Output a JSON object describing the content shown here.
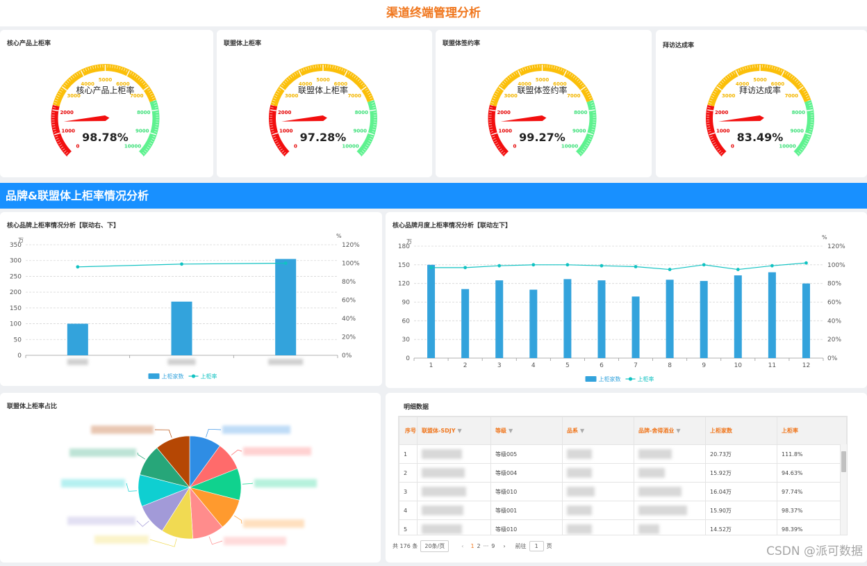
{
  "page_title": "渠道终端管理分析",
  "section_banner": "品牌&联盟体上柜率情况分析",
  "gauge_ticks": [
    "0",
    "1000",
    "2000",
    "3000",
    "4000",
    "5000",
    "6000",
    "7000",
    "8000",
    "9000",
    "10000"
  ],
  "gauges": [
    {
      "card_title": "核心产品上柜率",
      "center_label": "核心产品上柜率",
      "value_text": "98.78%",
      "needle_value": 1500
    },
    {
      "card_title": "联盟体上柜率",
      "center_label": "联盟体上柜率",
      "value_text": "97.28%",
      "needle_value": 1500
    },
    {
      "card_title": "联盟体签约率",
      "center_label": "联盟体签约率",
      "value_text": "99.27%",
      "needle_value": 1500
    },
    {
      "card_title": "拜访达成率",
      "center_label": "拜访达成率",
      "value_text": "83.49%",
      "needle_value": 1500
    }
  ],
  "bar_chart_left": {
    "card_title": "核心品牌上柜率情况分析【联动右、下】",
    "y_unit": "万",
    "y2_unit": "%",
    "y_ticks": [
      "0",
      "50",
      "100",
      "150",
      "200",
      "250",
      "300",
      "350"
    ],
    "y2_ticks": [
      "0%",
      "20%",
      "40%",
      "60%",
      "80%",
      "100%",
      "120%"
    ],
    "legend_bar": "上柜家数",
    "legend_line": "上柜率"
  },
  "bar_chart_right": {
    "card_title": "核心品牌月度上柜率情况分析【联动左下】",
    "y_unit": "万",
    "y2_unit": "%",
    "y_ticks": [
      "0",
      "30",
      "60",
      "90",
      "120",
      "150",
      "180"
    ],
    "y2_ticks": [
      "0%",
      "20%",
      "40%",
      "60%",
      "80%",
      "100%",
      "120%"
    ],
    "legend_bar": "上柜家数",
    "legend_line": "上柜率"
  },
  "chart_data": [
    {
      "type": "bar",
      "title": "核心品牌上柜率情况分析【联动右、下】",
      "categories": [
        "",
        "",
        ""
      ],
      "series": [
        {
          "name": "上柜家数",
          "type": "bar",
          "values": [
            100,
            170,
            305
          ]
        },
        {
          "name": "上柜率",
          "type": "line",
          "values": [
            96,
            99,
            100
          ]
        }
      ],
      "ylim": [
        0,
        350
      ],
      "y2lim": [
        0,
        120
      ],
      "ylabel": "万",
      "y2label": "%"
    },
    {
      "type": "bar",
      "title": "核心品牌月度上柜率情况分析【联动左下】",
      "categories": [
        "1",
        "2",
        "3",
        "4",
        "5",
        "6",
        "7",
        "8",
        "9",
        "10",
        "11",
        "12"
      ],
      "series": [
        {
          "name": "上柜家数",
          "type": "bar",
          "values": [
            150,
            111,
            125,
            110,
            127,
            125,
            99,
            126,
            124,
            133,
            138,
            120
          ]
        },
        {
          "name": "上柜率",
          "type": "line",
          "values": [
            97,
            97,
            99,
            100,
            100,
            99,
            98,
            95,
            100,
            95,
            99,
            102
          ]
        }
      ],
      "ylim": [
        0,
        180
      ],
      "y2lim": [
        0,
        120
      ],
      "ylabel": "万",
      "y2label": "%"
    },
    {
      "type": "pie",
      "title": "联盟体上柜率占比",
      "values": [
        10,
        9,
        10,
        10,
        10,
        10,
        10,
        10,
        10,
        11
      ],
      "colors": [
        "#2f8de4",
        "#ff6b6b",
        "#10d28e",
        "#ff9a2e",
        "#ff8c8c",
        "#f1da52",
        "#a29ad8",
        "#0fcfd1",
        "#27a679",
        "#b54704"
      ]
    }
  ],
  "pie_card_title": "联盟体上柜率占比",
  "table": {
    "card_title": "明细数据",
    "headers": [
      "序号",
      "联盟体-SDJY",
      "等级",
      "品系",
      "品牌-舍得酒业",
      "上柜家数",
      "上柜率"
    ],
    "rows": [
      {
        "idx": "1",
        "level": "等级005",
        "count": "20.73万",
        "rate": "111.8%"
      },
      {
        "idx": "2",
        "level": "等级004",
        "count": "15.92万",
        "rate": "94.63%"
      },
      {
        "idx": "3",
        "level": "等级010",
        "count": "16.04万",
        "rate": "97.74%"
      },
      {
        "idx": "4",
        "level": "等级001",
        "count": "15.90万",
        "rate": "98.37%"
      },
      {
        "idx": "5",
        "level": "等级010",
        "count": "14.52万",
        "rate": "98.39%"
      }
    ],
    "pager": {
      "total": "共 176 条",
      "page_size": "20条/页",
      "prev": "‹",
      "page1": "1",
      "page2": "2",
      "ellipsis": "···",
      "page_last": "9",
      "next": "›",
      "goto_label": "前往",
      "goto_value": "1",
      "goto_suffix": "页"
    }
  },
  "watermark": "CSDN @派可数据"
}
